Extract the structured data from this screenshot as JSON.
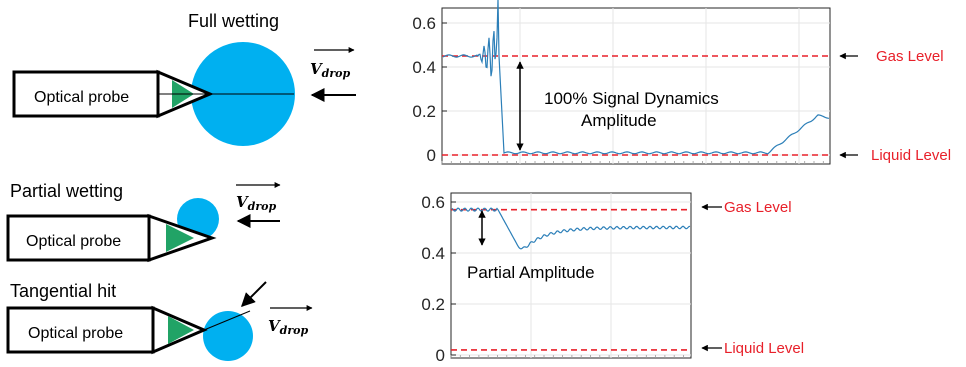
{
  "figure": {
    "left": {
      "full": {
        "title": "Full wetting",
        "probe_label": "Optical probe",
        "velocity_label": "V_drop"
      },
      "partial": {
        "title": "Partial wetting",
        "probe_label": "Optical probe",
        "velocity_label": "V_drop"
      },
      "tangential": {
        "title": "Tangential hit",
        "probe_label": "Optical probe",
        "velocity_label": "V_drop"
      }
    },
    "colors": {
      "drop": "#00b0f0",
      "tip": "#21a366",
      "signal": "#2c7fb8",
      "level_line": "#e8202a"
    }
  },
  "chart_data": [
    {
      "type": "line",
      "yticks": [
        "0.6",
        "0.4",
        "0.2",
        "0"
      ],
      "ylim": [
        0,
        0.62
      ],
      "levels": [
        {
          "label": "Gas Level",
          "value": 0.45
        },
        {
          "label": "Liquid Level",
          "value": 0.0
        }
      ],
      "annotation": {
        "text_line1": "100% Signal Dynamics",
        "text_line2": "Amplitude"
      },
      "series_description": {
        "baseline_high": 0.45,
        "oscillation_peak": 0.61,
        "baseline_low": 0.01,
        "final_value": 0.18
      }
    },
    {
      "type": "line",
      "yticks": [
        "0.6",
        "0.4",
        "0.2",
        "0"
      ],
      "ylim": [
        0,
        0.62
      ],
      "levels": [
        {
          "label": "Gas Level",
          "value": 0.57
        },
        {
          "label": "Liquid Level",
          "value": 0.02
        }
      ],
      "annotation": {
        "text": "Partial Amplitude"
      },
      "series_description": {
        "baseline_high": 0.57,
        "dip_min": 0.42,
        "final_value": 0.5
      }
    }
  ]
}
